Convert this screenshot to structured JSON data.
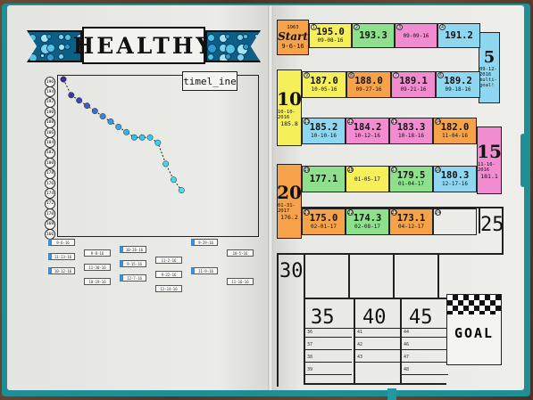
{
  "banner": {
    "title": "HEALTHY"
  },
  "chart": {
    "label": "timel_ine",
    "y_ticks": [
      "196",
      "194",
      "192",
      "190",
      "188",
      "186",
      "184",
      "182",
      "180",
      "178",
      "176",
      "174",
      "172",
      "170",
      "168",
      "166"
    ],
    "points": [
      196,
      193,
      192,
      191,
      190,
      189,
      188,
      187,
      186,
      185,
      185,
      185,
      184,
      180,
      177,
      175
    ],
    "x_tags": [
      "9-6-16",
      "9-8-16",
      "9-15-16",
      "9-22-16",
      "9-29-16",
      "10-5-16",
      "10-12-16",
      "10-19-16",
      "10-26-16",
      "11-2-16",
      "11-9-16",
      "11-16-16",
      "11-23-16",
      "11-30-16",
      "12-7-16",
      "12-14-16"
    ]
  },
  "board": {
    "start_label": "Start",
    "start_year": "1963",
    "start_date": "9-6-16",
    "squares_row1": [
      {
        "n": "1",
        "w": "195.0",
        "d": "09-08-16",
        "c": "#f5ef5a"
      },
      {
        "n": "2",
        "w": "193.3",
        "d": "",
        "c": "#8ee08c"
      },
      {
        "n": "3",
        "w": "",
        "d": "09-09-16",
        "c": "#f28cd0"
      },
      {
        "n": "4",
        "w": "191.2",
        "d": "",
        "c": "#8fd7f0"
      }
    ],
    "sq5": {
      "num": "5",
      "date": "09-12-2016",
      "note": "multi-goal!"
    },
    "squares_row2": [
      {
        "n": "9",
        "w": "187.0",
        "d": "10-05-16",
        "c": "#f5ef5a"
      },
      {
        "n": "8",
        "w": "188.0",
        "d": "09-27-16",
        "c": "#f5a24b"
      },
      {
        "n": "7",
        "w": "189.1",
        "d": "09-21-16",
        "c": "#f28cd0"
      },
      {
        "n": "6",
        "w": "189.2",
        "d": "09-18-16",
        "c": "#8fd7f0"
      }
    ],
    "sq10": {
      "num": "10",
      "date": "10-10-2016",
      "weight": "185.8"
    },
    "squares_row3": [
      {
        "n": "11",
        "w": "185.2",
        "d": "10-10-16",
        "c": "#8fd7f0"
      },
      {
        "n": "12",
        "w": "184.2",
        "d": "10-12-16",
        "c": "#f28cd0"
      },
      {
        "n": "13",
        "w": "183.3",
        "d": "10-18-16",
        "c": "#f28cd0"
      },
      {
        "n": "14",
        "w": "182.0",
        "d": "11-04-16",
        "c": "#f5a24b"
      }
    ],
    "sq15": {
      "num": "15",
      "date": "11-16-2016",
      "weight": "181.1"
    },
    "squares_row4": [
      {
        "n": "19",
        "w": "177.1",
        "d": "",
        "c": "#8ee08c"
      },
      {
        "n": "18",
        "w": "",
        "d": "01-05-17",
        "c": "#f5ef5a"
      },
      {
        "n": "17",
        "w": "179.5",
        "d": "01-04-17",
        "c": "#8ee08c"
      },
      {
        "n": "16",
        "w": "180.3",
        "d": "12-17-16",
        "c": "#8fd7f0"
      }
    ],
    "sq20": {
      "num": "20",
      "date": "01-31-2017",
      "weight": "176.2"
    },
    "squares_row5": [
      {
        "n": "21",
        "w": "175.0",
        "d": "02-01-17",
        "c": "#f5a24b"
      },
      {
        "n": "22",
        "w": "174.3",
        "d": "02-08-17",
        "c": "#8ee08c"
      },
      {
        "n": "23",
        "w": "173.1",
        "d": "04-12-17",
        "c": "#f5a24b"
      },
      {
        "n": "24",
        "w": "",
        "d": "",
        "c": "none"
      }
    ],
    "num25": "25",
    "num30": "30",
    "num35": "35",
    "num40": "40",
    "num45": "45",
    "goal": "GOAL",
    "rows_left": [
      "36",
      "37",
      "38",
      "39"
    ],
    "rows_mid": [
      "41",
      "42",
      "43"
    ],
    "rows_right": [
      "44",
      "46",
      "47",
      "48"
    ]
  }
}
